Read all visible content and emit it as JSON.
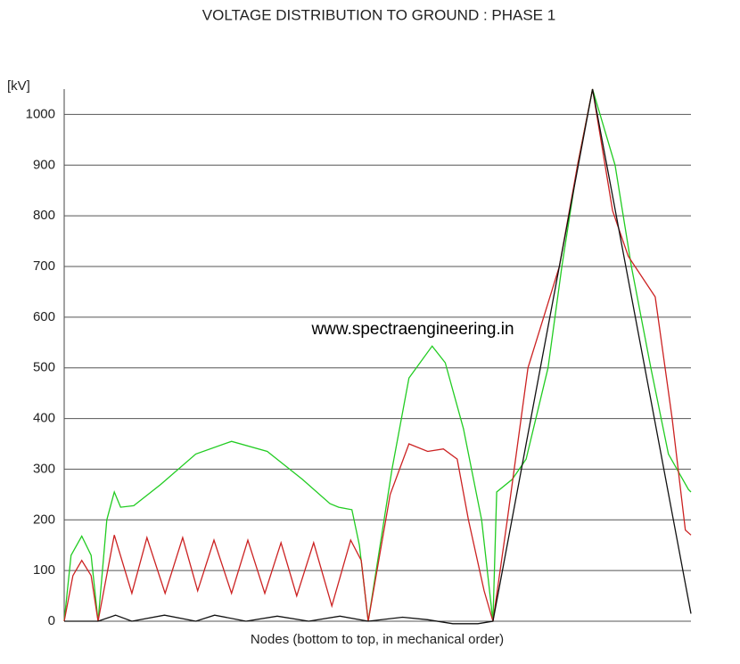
{
  "chart_data": {
    "type": "line",
    "title": "VOLTAGE DISTRIBUTION TO GROUND :  PHASE 1",
    "y_label": "[kV]",
    "x_label": "Nodes (bottom to top, in mechanical order)",
    "annotation": "www.spectraengineering.in",
    "xlim": [
      0,
      100
    ],
    "ylim": [
      0,
      1050
    ],
    "yticks": [
      0,
      100,
      200,
      300,
      400,
      500,
      600,
      700,
      800,
      900,
      1000
    ],
    "grid": true,
    "series": [
      {
        "color": "#22cc22",
        "x": [
          0,
          1.1,
          2.8,
          4.3,
          5.4,
          6.8,
          8,
          9,
          11.1,
          15.4,
          21,
          26.7,
          32.4,
          38,
          42.4,
          43.8,
          45.9,
          47.1,
          48.5,
          52.3,
          55,
          58.7,
          60.8,
          63.7,
          66.6,
          68.4,
          69,
          71.5,
          73.7,
          77.2,
          79.4,
          81.9,
          84.3,
          87.9,
          90.5,
          93.6,
          96.4,
          99.6,
          100
        ],
        "values": [
          0,
          130,
          168,
          130,
          0,
          200,
          255,
          225,
          228,
          270,
          330,
          355,
          335,
          280,
          232,
          225,
          220,
          150,
          0,
          300,
          480,
          543,
          510,
          380,
          200,
          0,
          255,
          280,
          320,
          500,
          700,
          900,
          1050,
          900,
          700,
          500,
          330,
          260,
          255
        ]
      },
      {
        "color": "#cc2222",
        "x": [
          0,
          1.4,
          2.8,
          4.3,
          5.4,
          8,
          10.8,
          13.2,
          16.1,
          18.9,
          21.3,
          23.9,
          26.7,
          29.3,
          32,
          34.6,
          37.1,
          39.8,
          42.7,
          45.7,
          47.4,
          48.5,
          52,
          55,
          58,
          60.5,
          62.7,
          64.5,
          67,
          68.4,
          70.7,
          74,
          79,
          81.9,
          84.3,
          87.5,
          90,
          94.3,
          97,
          99.1,
          100
        ],
        "values": [
          0,
          90,
          120,
          90,
          0,
          170,
          55,
          165,
          55,
          165,
          60,
          160,
          55,
          160,
          55,
          155,
          50,
          155,
          30,
          160,
          120,
          0,
          250,
          350,
          335,
          340,
          320,
          200,
          60,
          0,
          200,
          500,
          700,
          900,
          1050,
          810,
          720,
          640,
          400,
          180,
          170
        ]
      },
      {
        "color": "#111111",
        "x": [
          0,
          5.4,
          8.2,
          10.8,
          16,
          21,
          24,
          29,
          34,
          39,
          44,
          48.5,
          54,
          58,
          62,
          66,
          68.4,
          84.3,
          100
        ],
        "values": [
          0,
          0,
          12,
          0,
          12,
          0,
          12,
          0,
          10,
          0,
          10,
          0,
          8,
          3,
          -5,
          -5,
          0,
          1050,
          15
        ]
      }
    ]
  }
}
